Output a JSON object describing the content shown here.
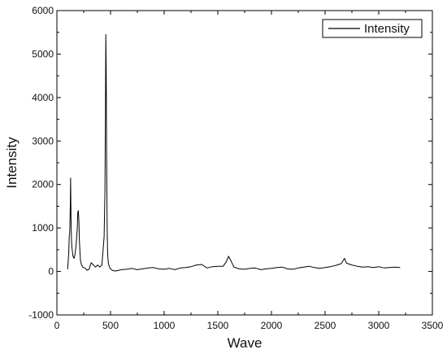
{
  "chart_data": {
    "type": "line",
    "title": "",
    "xlabel": "Wave",
    "ylabel": "Intensity",
    "xlim": [
      0,
      3500
    ],
    "ylim": [
      -1000,
      6000
    ],
    "x_ticks": [
      0,
      500,
      1000,
      1500,
      2000,
      2500,
      3000,
      3500
    ],
    "y_ticks": [
      -1000,
      0,
      1000,
      2000,
      3000,
      4000,
      5000,
      6000
    ],
    "grid": false,
    "legend": "top-right",
    "series": [
      {
        "name": "Intensity",
        "color": "#000000",
        "x": [
          100,
          110,
          115,
          120,
          125,
          128,
          132,
          136,
          140,
          150,
          160,
          170,
          180,
          190,
          195,
          200,
          205,
          210,
          215,
          220,
          230,
          240,
          260,
          280,
          300,
          320,
          340,
          360,
          380,
          400,
          420,
          440,
          448,
          452,
          456,
          460,
          464,
          468,
          472,
          476,
          480,
          490,
          500,
          520,
          550,
          600,
          650,
          700,
          750,
          800,
          850,
          900,
          950,
          1000,
          1050,
          1100,
          1150,
          1200,
          1250,
          1300,
          1350,
          1400,
          1450,
          1500,
          1550,
          1580,
          1600,
          1620,
          1650,
          1700,
          1750,
          1800,
          1850,
          1900,
          1950,
          2000,
          2050,
          2100,
          2150,
          2200,
          2250,
          2300,
          2350,
          2400,
          2450,
          2500,
          2550,
          2600,
          2650,
          2680,
          2700,
          2750,
          2800,
          2850,
          2900,
          2950,
          3000,
          3050,
          3100,
          3150,
          3200
        ],
        "y": [
          50,
          400,
          800,
          900,
          1500,
          2150,
          1200,
          700,
          550,
          350,
          300,
          400,
          650,
          1000,
          1350,
          1400,
          1150,
          700,
          450,
          250,
          150,
          100,
          80,
          30,
          50,
          200,
          150,
          100,
          150,
          100,
          150,
          800,
          1800,
          3500,
          5450,
          4600,
          2600,
          1100,
          500,
          300,
          180,
          100,
          60,
          20,
          10,
          40,
          50,
          70,
          40,
          60,
          80,
          90,
          60,
          50,
          70,
          40,
          80,
          90,
          110,
          150,
          160,
          80,
          110,
          120,
          120,
          230,
          350,
          260,
          100,
          60,
          50,
          70,
          80,
          40,
          60,
          70,
          90,
          100,
          60,
          50,
          80,
          100,
          120,
          90,
          70,
          90,
          110,
          140,
          180,
          300,
          190,
          150,
          120,
          100,
          110,
          90,
          110,
          80,
          90,
          100,
          90
        ]
      }
    ]
  }
}
